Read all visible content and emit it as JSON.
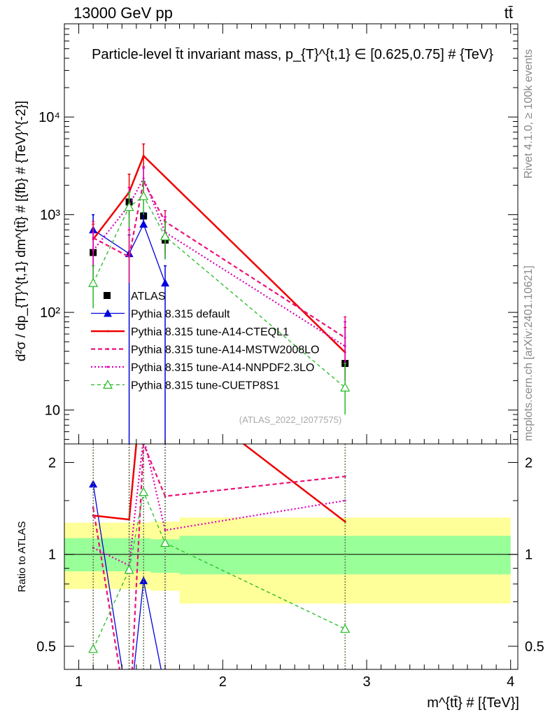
{
  "header": {
    "left": "13000 GeV pp",
    "right": "tt̄"
  },
  "side_labels": {
    "rivet": "Rivet 4.1.0, ≥ 100k events",
    "mcplots": "mcplots.cern.ch [arXiv:2401.10621]"
  },
  "chart_data": [
    {
      "type": "line",
      "title": "Particle-level t̄t invariant mass, p_{T}^{t,1} ∈ [0.625,0.75] # {TeV}",
      "xlabel": "m^{tt̄} # [{TeV}]",
      "ylabel": "d²σ / dp_{T}^{t,1} dm^{tt̄} # [{fb} # {TeV}^{-2}]",
      "xlim": [
        0.9,
        4.05
      ],
      "ylim": [
        4.5,
        90000
      ],
      "yscale": "log",
      "y_ticks": [
        10,
        100,
        1000,
        10000
      ],
      "y_tick_labels": [
        "10",
        "10²",
        "10³",
        "10⁴"
      ],
      "legend_position": "left",
      "watermark": "(ATLAS_2022_I2077575)",
      "series": [
        {
          "name": "ATLAS",
          "color": "#000000",
          "style": "data",
          "x": [
            1.1,
            1.35,
            1.45,
            1.6,
            2.85
          ],
          "y": [
            410,
            1350,
            970,
            550,
            30
          ]
        },
        {
          "name": "Pythia 8.315 default",
          "color": "#0000dd",
          "style": "solid-thin-triangle",
          "x": [
            1.1,
            1.35,
            1.45,
            1.6
          ],
          "y": [
            700,
            400,
            800,
            200
          ],
          "err_low": [
            550,
            395,
            760,
            198
          ],
          "err_high": [
            1000,
            620,
            1050,
            300
          ]
        },
        {
          "name": "Pythia 8.315 tune-A14-CTEQL1",
          "color": "#ee0000",
          "style": "solid-thick",
          "x": [
            1.1,
            1.35,
            1.45,
            2.85
          ],
          "y": [
            560,
            1700,
            4000,
            39
          ],
          "err_low": [
            280,
            1000,
            2800,
            20
          ],
          "err_high": [
            800,
            2600,
            5300,
            70
          ]
        },
        {
          "name": "Pythia 8.315 tune-A14-MSTW2008LO",
          "color": "#ee1177",
          "style": "dashed",
          "x": [
            1.1,
            1.35,
            1.45,
            1.6,
            2.85
          ],
          "y": [
            580,
            370,
            2200,
            850,
            55
          ],
          "err_low": [
            300,
            200,
            1400,
            400,
            25
          ],
          "err_high": [
            850,
            700,
            3100,
            1100,
            90
          ]
        },
        {
          "name": "Pythia 8.315 tune-A14-NNPDF2.3LO",
          "color": "#dd00bb",
          "style": "dotted",
          "x": [
            1.1,
            1.35,
            1.45,
            1.6,
            2.85
          ],
          "y": [
            430,
            1250,
            2350,
            660,
            45
          ],
          "err_low": [
            220,
            700,
            1400,
            350,
            20
          ],
          "err_high": [
            650,
            1900,
            3000,
            950,
            80
          ]
        },
        {
          "name": "Pythia 8.315 tune-CUETP8S1",
          "color": "#22bb22",
          "style": "dashed-open-triangle",
          "x": [
            1.1,
            1.35,
            1.45,
            1.6,
            2.85
          ],
          "y": [
            200,
            1200,
            1550,
            600,
            17
          ],
          "err_low": [
            110,
            750,
            1000,
            350,
            9
          ],
          "err_high": [
            300,
            1700,
            2200,
            850,
            30
          ]
        }
      ]
    },
    {
      "type": "line",
      "xlabel": "m^{tt̄} # [{TeV}]",
      "ylabel": "Ratio to ATLAS",
      "xlim": [
        0.9,
        4.05
      ],
      "ylim": [
        0.42,
        2.3
      ],
      "yscale": "log",
      "y_ticks": [
        0.5,
        1,
        2
      ],
      "y_tick_labels": [
        "0.5",
        "1",
        "2"
      ],
      "x_ticks": [
        1,
        2,
        3,
        4
      ],
      "x_tick_labels": [
        "1",
        "2",
        "3",
        "4"
      ],
      "bands": {
        "bins": [
          [
            0.9,
            1.3
          ],
          [
            1.3,
            1.4
          ],
          [
            1.4,
            1.5
          ],
          [
            1.5,
            1.7
          ],
          [
            1.7,
            4.0
          ]
        ],
        "green": [
          [
            0.88,
            1.13
          ],
          [
            0.88,
            1.13
          ],
          [
            0.88,
            1.13
          ],
          [
            0.87,
            1.12
          ],
          [
            0.86,
            1.15
          ]
        ],
        "yellow": [
          [
            0.77,
            1.27
          ],
          [
            0.77,
            1.27
          ],
          [
            0.77,
            1.27
          ],
          [
            0.76,
            1.28
          ],
          [
            0.69,
            1.32
          ]
        ]
      },
      "series": [
        {
          "name": "Pythia 8.315 default",
          "color": "#0000dd",
          "x": [
            1.1,
            1.35,
            1.45,
            1.6
          ],
          "y": [
            1.7,
            0.3,
            0.82,
            0.36
          ]
        },
        {
          "name": "Pythia 8.315 tune-A14-CTEQL1",
          "color": "#ee0000",
          "x": [
            1.1,
            1.35,
            1.45,
            2.85
          ],
          "y": [
            1.34,
            1.3,
            4.1,
            1.28
          ]
        },
        {
          "name": "Pythia 8.315 tune-A14-MSTW2008LO",
          "color": "#ee1177",
          "x": [
            1.1,
            1.35,
            1.45,
            1.6,
            2.85
          ],
          "y": [
            1.42,
            0.27,
            2.3,
            1.55,
            1.8
          ]
        },
        {
          "name": "Pythia 8.315 tune-A14-NNPDF2.3LO",
          "color": "#dd00bb",
          "x": [
            1.1,
            1.35,
            1.45,
            1.6,
            2.85
          ],
          "y": [
            1.05,
            0.92,
            2.42,
            1.2,
            1.5
          ]
        },
        {
          "name": "Pythia 8.315 tune-CUETP8S1",
          "color": "#22bb22",
          "x": [
            1.1,
            1.35,
            1.45,
            1.6,
            2.85
          ],
          "y": [
            0.49,
            0.89,
            1.6,
            1.09,
            0.57
          ]
        }
      ]
    }
  ]
}
